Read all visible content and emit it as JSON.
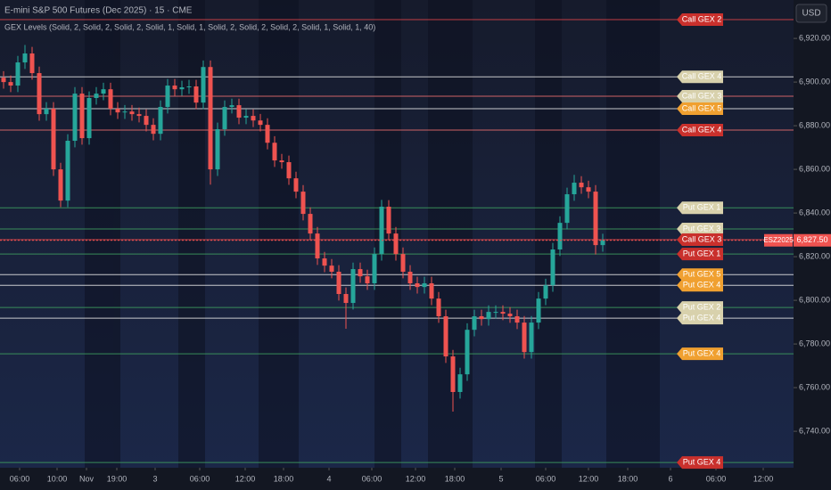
{
  "chart_data": {
    "type": "candlestick",
    "title": "E-mini S&P 500 Futures (Dec 2025) · 15 · CME",
    "subtitle": "GEX Levels (Solid, 2, Solid, 2, Solid, 2, Solid, 1, Solid, 1, Solid, 2, Solid, 2, Solid, 2, Solid, 1, Solid, 1, 40)",
    "currency": "USD",
    "symbol": "ESZ2025",
    "last_price": 6827.5,
    "last_price_label": "6,827.50",
    "up_color": "#26a69a",
    "down_color": "#ef5350",
    "open": [
      6902,
      6900,
      6898.4,
      6909,
      6913.1,
      6904.1,
      6885.3,
      6887.8,
      6860,
      6845.7,
      6873.1,
      6894.7,
      6874.3,
      6892.7,
      6894.7,
      6896.7,
      6887.8,
      6886.1,
      6886.5,
      6885.3,
      6884.5,
      6880.4,
      6876.3,
      6888.6,
      6898.4,
      6896.7,
      6897.6,
      6898,
      6890.6,
      6906.9,
      6860,
      6878.4,
      6888.6,
      6889.4,
      6883.7,
      6884.5,
      6882.4,
      6880.4,
      6872.2,
      6864.1,
      6863.3,
      6855.9,
      6849.8,
      6839.6,
      6830.6,
      6819.2,
      6815.9,
      6813.1,
      6802.9,
      6798.8,
      6814.3,
      6811,
      6807.8,
      6821.2,
      6842.9,
      6830.6,
      6821.2,
      6813.1,
      6807.8,
      6806.1,
      6807.8,
      6800.8,
      6792.7,
      6774.3,
      6758,
      6766.1,
      6786.5,
      6792.7,
      6791.4,
      6794.7,
      6794.7,
      6793.9,
      6792.7,
      6789.8,
      6776.3,
      6789.8,
      6800.8,
      6806.9,
      6823.3,
      6835.5,
      6848.6,
      6853.9,
      6851.8,
      6849.8,
      6825.3
    ],
    "high": [
      6905,
      6903,
      6912,
      6917,
      6916.1,
      6907.1,
      6890.8,
      6890.8,
      6863,
      6876.1,
      6897.7,
      6897.7,
      6895.7,
      6897.7,
      6899.7,
      6899.7,
      6890.8,
      6889.5,
      6889.5,
      6888.3,
      6887.5,
      6883.4,
      6891.6,
      6901.4,
      6901.4,
      6900.6,
      6901,
      6901,
      6909.9,
      6909.9,
      6881.4,
      6891.6,
      6892.4,
      6892.4,
      6887.5,
      6887.5,
      6885.4,
      6883.4,
      6875.2,
      6867.1,
      6866.3,
      6858.9,
      6852.8,
      6842.6,
      6833.6,
      6822.2,
      6818.9,
      6816.1,
      6805.9,
      6817.3,
      6817.3,
      6814,
      6824.2,
      6846,
      6845.9,
      6833.6,
      6824.2,
      6816.1,
      6810.8,
      6810.8,
      6810.8,
      6803.8,
      6795.7,
      6777.3,
      6769.1,
      6789.5,
      6795.7,
      6795.7,
      6797.7,
      6797.7,
      6797.7,
      6796.9,
      6795.7,
      6792.8,
      6792.8,
      6803.8,
      6809.9,
      6826.3,
      6838.5,
      6851.6,
      6857.5,
      6856.9,
      6854.8,
      6852.8,
      6830.5
    ],
    "low": [
      6897,
      6895.4,
      6895.4,
      6906,
      6901.1,
      6882.3,
      6882.3,
      6857,
      6842.7,
      6842.7,
      6870.1,
      6871.3,
      6871.3,
      6889.7,
      6891.7,
      6884.8,
      6883.1,
      6883.1,
      6882.3,
      6881.5,
      6877.4,
      6873.3,
      6873.3,
      6885.6,
      6893.7,
      6893.7,
      6894.6,
      6887.6,
      6887.6,
      6853,
      6857,
      6875.4,
      6885.6,
      6880.7,
      6880.7,
      6879.4,
      6877.4,
      6869.2,
      6861.1,
      6860.3,
      6852.9,
      6846.8,
      6836.6,
      6827.6,
      6816.2,
      6812.9,
      6810.1,
      6799.9,
      6787,
      6795.8,
      6808,
      6804.8,
      6804.8,
      6818.2,
      6827.6,
      6818.2,
      6810.1,
      6804.8,
      6803.1,
      6803.1,
      6797.8,
      6789.7,
      6771.3,
      6749,
      6755,
      6763.1,
      6783.5,
      6788.4,
      6788.4,
      6791.7,
      6790.9,
      6789.7,
      6786.8,
      6773.3,
      6773.3,
      6786.8,
      6797.8,
      6803.9,
      6820.3,
      6832.5,
      6845.6,
      6848.8,
      6846.8,
      6821,
      6822.3
    ],
    "close": [
      6900,
      6898.4,
      6909,
      6913.1,
      6904.1,
      6885.3,
      6887.8,
      6860,
      6845.7,
      6873.1,
      6894.7,
      6874.3,
      6892.7,
      6894.7,
      6896.7,
      6887.8,
      6886.1,
      6886.5,
      6885.3,
      6884.5,
      6880.4,
      6876.3,
      6888.6,
      6898.4,
      6896.7,
      6897.6,
      6898,
      6890.6,
      6906.9,
      6860,
      6878.4,
      6888.6,
      6889.4,
      6883.7,
      6884.5,
      6882.4,
      6880.4,
      6872.2,
      6864.1,
      6863.3,
      6855.9,
      6849.8,
      6839.6,
      6830.6,
      6819.2,
      6815.9,
      6813.1,
      6802.9,
      6798.8,
      6814.3,
      6811,
      6807.8,
      6821.2,
      6842.9,
      6830.6,
      6821.2,
      6813.1,
      6807.8,
      6806.1,
      6807.8,
      6800.8,
      6792.7,
      6774.3,
      6758,
      6766.1,
      6786.5,
      6792.7,
      6791.4,
      6794.7,
      6794.7,
      6793.9,
      6792.7,
      6789.8,
      6776.3,
      6789.8,
      6800.8,
      6806.9,
      6823.3,
      6835.5,
      6848.6,
      6853.9,
      6851.8,
      6849.8,
      6825.3,
      6827.5
    ],
    "xlim": [
      -0.5,
      110.75
    ],
    "xticks": [
      {
        "value": 2.25,
        "label": "06:00"
      },
      {
        "value": 7.5,
        "label": "10:00"
      },
      {
        "value": 11.625,
        "label": "Nov"
      },
      {
        "value": 15.875,
        "label": "19:00"
      },
      {
        "value": 21.25,
        "label": "3"
      },
      {
        "value": 27.5,
        "label": "06:00"
      },
      {
        "value": 33.875,
        "label": "12:00"
      },
      {
        "value": 39.25,
        "label": "18:00"
      },
      {
        "value": 45.625,
        "label": "4"
      },
      {
        "value": 51.625,
        "label": "06:00"
      },
      {
        "value": 57.75,
        "label": "12:00"
      },
      {
        "value": 63.25,
        "label": "18:00"
      },
      {
        "value": 69.75,
        "label": "5"
      },
      {
        "value": 76,
        "label": "06:00"
      },
      {
        "value": 82,
        "label": "12:00"
      },
      {
        "value": 87.5,
        "label": "18:00"
      },
      {
        "value": 93.5,
        "label": "6"
      },
      {
        "value": 99.875,
        "label": "06:00"
      },
      {
        "value": 106.5,
        "label": "12:00"
      }
    ],
    "ylim": [
      6723.3,
      6937.6
    ],
    "yticks": [
      {
        "value": 6740,
        "label": "6,740.00"
      },
      {
        "value": 6760,
        "label": "6,760.00"
      },
      {
        "value": 6780,
        "label": "6,780.00"
      },
      {
        "value": 6800,
        "label": "6,800.00"
      },
      {
        "value": 6820,
        "label": "6,820.00"
      },
      {
        "value": 6840,
        "label": "6,840.00"
      },
      {
        "value": 6860,
        "label": "6,860.00"
      },
      {
        "value": 6880,
        "label": "6,880.00"
      },
      {
        "value": 6900,
        "label": "6,900.00"
      },
      {
        "value": 6920,
        "label": "6,920.00"
      }
    ],
    "levels": [
      {
        "label": "Call GEX 2",
        "value": 6928.6,
        "color": "#c9302c",
        "line_color": "#e0454a"
      },
      {
        "label": "Call GEX 4",
        "value": 6902.4,
        "color": "#d8d1ac",
        "line_color": "#e8e8e8"
      },
      {
        "label": "Call GEX 3",
        "value": 6893.5,
        "color": "#d8d1ac",
        "line_color": "#f07070"
      },
      {
        "label": "Call GEX 5",
        "value": 6887.8,
        "color": "#f0a030",
        "line_color": "#e8e8e8"
      },
      {
        "label": "Call GEX 4",
        "value": 6878,
        "color": "#c9302c",
        "line_color": "#f07070"
      },
      {
        "label": "Put GEX 1",
        "value": 6842.4,
        "color": "#d8d1ac",
        "line_color": "#3fa060"
      },
      {
        "label": "Put GEX 3",
        "value": 6832.7,
        "color": "#d8d1ac",
        "line_color": "#3fa060"
      },
      {
        "label": "Call GEX 3",
        "value": 6827.8,
        "color": "#c9302c",
        "line_color": "#e0454a"
      },
      {
        "label": "Put GEX 1",
        "value": 6821.2,
        "color": "#c9302c",
        "line_color": "#3fa060"
      },
      {
        "label": "Put GEX 5",
        "value": 6811.8,
        "color": "#f0a030",
        "line_color": "#e8e8e8"
      },
      {
        "label": "Put GEX 4",
        "value": 6806.9,
        "color": "#f0a030",
        "line_color": "#e8e8e8"
      },
      {
        "label": "Put GEX 2",
        "value": 6796.7,
        "color": "#d8d1ac",
        "line_color": "#3fa060"
      },
      {
        "label": "Put GEX 4",
        "value": 6791.8,
        "color": "#d8d1ac",
        "line_color": "#e8e8e8"
      },
      {
        "label": "Put GEX 4",
        "value": 6775.5,
        "color": "#f0a030",
        "line_color": "#3fa060"
      },
      {
        "label": "Put GEX 4",
        "value": 6725.7,
        "color": "#c9302c",
        "line_color": "#3fa060"
      }
    ]
  }
}
